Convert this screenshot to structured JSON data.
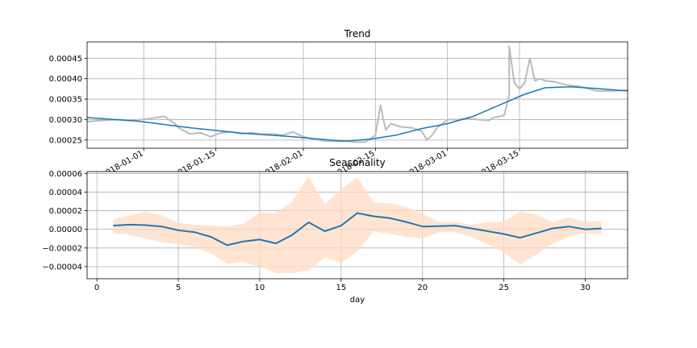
{
  "chart_data": [
    {
      "type": "line",
      "title": "Trend",
      "xlabel": "",
      "ylabel": "",
      "x_type": "date",
      "xlim": [
        "2017-12-21",
        "2018-04-05"
      ],
      "ylim": [
        0.00023,
        0.00049
      ],
      "x_ticks": [
        "2018-01-01",
        "2018-01-15",
        "2018-02-01",
        "2018-02-15",
        "2018-03-01",
        "2018-03-15"
      ],
      "x_tick_labels": [
        "2018-01-01",
        "2018-01-15",
        "2018-02-01",
        "2018-02-15",
        "2018-03-01",
        "2018-03-15"
      ],
      "y_ticks": [
        0.00025,
        0.0003,
        0.00035,
        0.0004,
        0.00045
      ],
      "y_tick_labels": [
        "0.00025",
        "0.00030",
        "0.00035",
        "0.00040",
        "0.00045"
      ],
      "grid": true,
      "series": [
        {
          "color": "#bbbbbb",
          "x": [
            "2017-12-21",
            "2017-12-24",
            "2017-12-27",
            "2017-12-30",
            "2018-01-02",
            "2018-01-05",
            "2018-01-07",
            "2018-01-08",
            "2018-01-10",
            "2018-01-12",
            "2018-01-14",
            "2018-01-16",
            "2018-01-18",
            "2018-01-20",
            "2018-01-22",
            "2018-01-24",
            "2018-01-26",
            "2018-01-28",
            "2018-01-30",
            "2018-02-01",
            "2018-02-03",
            "2018-02-05",
            "2018-02-07",
            "2018-02-09",
            "2018-02-11",
            "2018-02-13",
            "2018-02-15",
            "2018-02-16",
            "2018-02-17",
            "2018-02-18",
            "2018-02-20",
            "2018-02-22",
            "2018-02-24",
            "2018-02-25",
            "2018-02-26",
            "2018-02-27",
            "2018-03-01",
            "2018-03-03",
            "2018-03-05",
            "2018-03-07",
            "2018-03-09",
            "2018-03-10",
            "2018-03-12",
            "2018-03-13",
            "2018-03-13",
            "2018-03-14",
            "2018-03-15",
            "2018-03-16",
            "2018-03-17",
            "2018-03-18",
            "2018-03-19",
            "2018-03-20",
            "2018-03-22",
            "2018-03-24",
            "2018-03-27",
            "2018-03-30",
            "2018-04-02",
            "2018-04-05"
          ],
          "y": [
            0.000295,
            0.000298,
            0.0003,
            0.000298,
            0.000302,
            0.000308,
            0.00029,
            0.000278,
            0.000265,
            0.000268,
            0.000258,
            0.000268,
            0.00027,
            0.000265,
            0.000268,
            0.000264,
            0.000265,
            0.000262,
            0.00027,
            0.000258,
            0.000252,
            0.000248,
            0.000247,
            0.000248,
            0.000245,
            0.000245,
            0.000262,
            0.000335,
            0.000275,
            0.00029,
            0.000282,
            0.00028,
            0.000272,
            0.00025,
            0.000262,
            0.00028,
            0.0003,
            0.0003,
            0.000302,
            0.0003,
            0.000298,
            0.000305,
            0.00031,
            0.00036,
            0.00048,
            0.00039,
            0.000375,
            0.00039,
            0.00045,
            0.000395,
            0.0004,
            0.000395,
            0.000392,
            0.000385,
            0.00038,
            0.00037,
            0.00037,
            0.000372
          ]
        },
        {
          "color": "#1f77b4",
          "x": [
            "2017-12-21",
            "2017-12-31",
            "2018-01-10",
            "2018-01-20",
            "2018-01-30",
            "2018-02-09",
            "2018-02-14",
            "2018-02-19",
            "2018-02-24",
            "2018-03-01",
            "2018-03-06",
            "2018-03-11",
            "2018-03-16",
            "2018-03-20",
            "2018-03-25",
            "2018-03-30",
            "2018-04-05"
          ],
          "y": [
            0.000305,
            0.000296,
            0.00028,
            0.000267,
            0.000258,
            0.000247,
            0.000252,
            0.000262,
            0.000278,
            0.00029,
            0.000308,
            0.000335,
            0.000362,
            0.000378,
            0.00038,
            0.000376,
            0.00037
          ]
        }
      ]
    },
    {
      "type": "line",
      "title": "Seasonality",
      "xlabel": "day",
      "ylabel": "",
      "xlim": [
        -0.6,
        32.6
      ],
      "ylim": [
        -5.3e-05,
        6.2e-05
      ],
      "x_ticks": [
        0,
        5,
        10,
        15,
        20,
        25,
        30
      ],
      "x_tick_labels": [
        "0",
        "5",
        "10",
        "15",
        "20",
        "25",
        "30"
      ],
      "y_ticks": [
        -4e-05,
        -2e-05,
        0.0,
        2e-05,
        4e-05,
        6e-05
      ],
      "y_tick_labels": [
        "−0.00004",
        "−0.00002",
        "0.00000",
        "0.00002",
        "0.00004",
        "0.00006"
      ],
      "grid": true,
      "band_color": "#ffdcc2",
      "line_color": "#1f77b4",
      "x": [
        1,
        2,
        3,
        4,
        5,
        6,
        7,
        8,
        9,
        10,
        11,
        12,
        13,
        14,
        15,
        16,
        17,
        18,
        19,
        20,
        21,
        22,
        23,
        24,
        25,
        26,
        27,
        28,
        29,
        30,
        31
      ],
      "y": [
        4e-06,
        5e-06,
        4.5e-06,
        3e-06,
        -1e-06,
        -3e-06,
        -8e-06,
        -1.7e-05,
        -1.3e-05,
        -1.1e-05,
        -1.5e-05,
        -6e-06,
        7.5e-06,
        -2e-06,
        4e-06,
        1.75e-05,
        1.4e-05,
        1.2e-05,
        8e-06,
        3e-06,
        3.5e-06,
        4e-06,
        1e-06,
        -2e-06,
        -5e-06,
        -9e-06,
        -4e-06,
        1e-06,
        3e-06,
        0.0,
        1e-06
      ],
      "lower": [
        -4e-06,
        -6e-06,
        -1e-05,
        -1.4e-05,
        -1.6e-05,
        -1.9e-05,
        -2.6e-05,
        -3.7e-05,
        -3.5e-05,
        -4e-05,
        -4.7e-05,
        -4.7e-05,
        -4.4e-05,
        -3e-05,
        -3.6e-05,
        -2.4e-05,
        -2e-06,
        -5e-06,
        -8e-06,
        -1e-05,
        -3e-06,
        -3e-06,
        -8e-06,
        -1.6e-05,
        -2.5e-05,
        -3.8e-05,
        -2.7e-05,
        -1.5e-05,
        -8e-06,
        -4e-06,
        -6e-06
      ],
      "upper": [
        1.1e-05,
        1.5e-05,
        1.9e-05,
        1.5e-05,
        7e-06,
        5e-06,
        4e-06,
        3e-06,
        6e-06,
        1.8e-05,
        1.8e-05,
        3e-05,
        5.7e-05,
        2.7e-05,
        4.3e-05,
        5.6e-05,
        2.9e-05,
        2.8e-05,
        2.4e-05,
        1.7e-05,
        8e-06,
        8e-06,
        5e-06,
        8e-06,
        8e-06,
        1.9e-05,
        1.6e-05,
        8e-06,
        1.3e-05,
        8e-06,
        9e-06
      ]
    }
  ]
}
